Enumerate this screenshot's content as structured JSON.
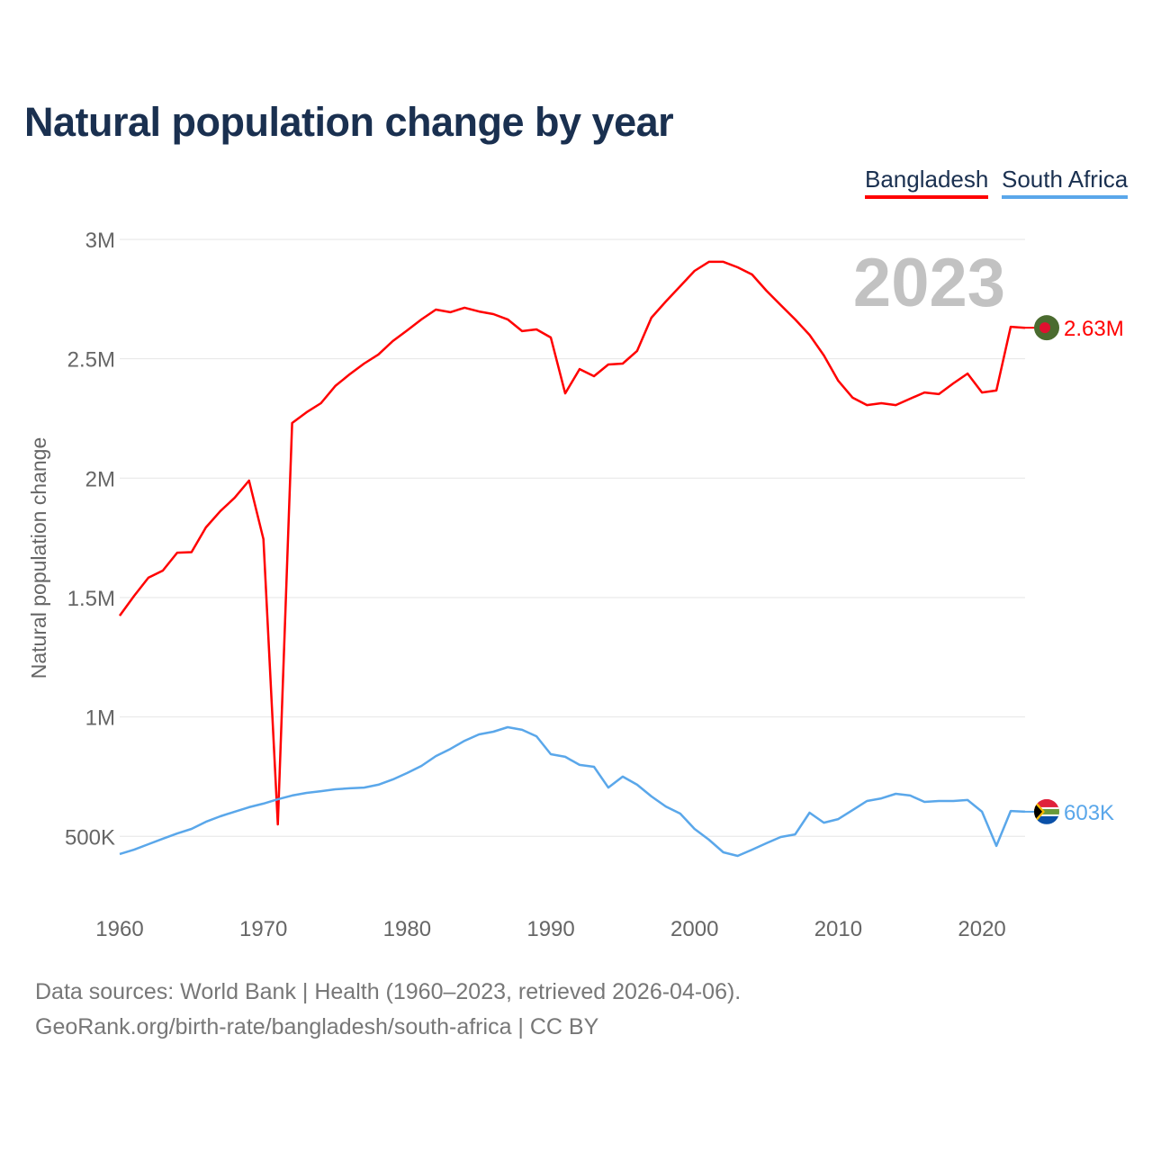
{
  "title": "Natural population change by year",
  "footer": {
    "line1": "Data sources: World Bank | Health (1960–2023, retrieved 2026-04-06).",
    "line2": "GeoRank.org/birth-rate/bangladesh/south-africa | CC BY"
  },
  "chart_data": {
    "type": "line",
    "title": "Natural population change by year",
    "xlabel": "",
    "ylabel": "Natural population change",
    "year_label": "2023",
    "xlim": [
      1960,
      2023
    ],
    "ylim": [
      300000,
      3000000
    ],
    "grid": true,
    "legend_position": "top-right",
    "x_ticks": [
      1960,
      1970,
      1980,
      1990,
      2000,
      2010,
      2020
    ],
    "y_ticks": [
      {
        "value": 500000,
        "label": "500K"
      },
      {
        "value": 1000000,
        "label": "1M"
      },
      {
        "value": 1500000,
        "label": "1.5M"
      },
      {
        "value": 2000000,
        "label": "2M"
      },
      {
        "value": 2500000,
        "label": "2.5M"
      },
      {
        "value": 3000000,
        "label": "3M"
      }
    ],
    "x": [
      1960,
      1961,
      1962,
      1963,
      1964,
      1965,
      1966,
      1967,
      1968,
      1969,
      1970,
      1971,
      1972,
      1973,
      1974,
      1975,
      1976,
      1977,
      1978,
      1979,
      1980,
      1981,
      1982,
      1983,
      1984,
      1985,
      1986,
      1987,
      1988,
      1989,
      1990,
      1991,
      1992,
      1993,
      1994,
      1995,
      1996,
      1997,
      1998,
      1999,
      2000,
      2001,
      2002,
      2003,
      2004,
      2005,
      2006,
      2007,
      2008,
      2009,
      2010,
      2011,
      2012,
      2013,
      2014,
      2015,
      2016,
      2017,
      2018,
      2019,
      2020,
      2021,
      2022,
      2023
    ],
    "series": [
      {
        "name": "Bangladesh",
        "color": "#ff0000",
        "end_label": "2.63M",
        "flag": "bangladesh-flag",
        "values": [
          1424000,
          1507000,
          1583000,
          1613000,
          1688000,
          1690000,
          1794000,
          1862000,
          1918000,
          1990000,
          1745000,
          550000,
          2231000,
          2276000,
          2314000,
          2386000,
          2435000,
          2480000,
          2518000,
          2574000,
          2619000,
          2665000,
          2706000,
          2695000,
          2714000,
          2698000,
          2687000,
          2665000,
          2616000,
          2623000,
          2589000,
          2355000,
          2457000,
          2427000,
          2476000,
          2480000,
          2533000,
          2672000,
          2740000,
          2804000,
          2868000,
          2906000,
          2906000,
          2883000,
          2853000,
          2785000,
          2725000,
          2665000,
          2600000,
          2514000,
          2408000,
          2337000,
          2306000,
          2314000,
          2306000,
          2333000,
          2359000,
          2352000,
          2397000,
          2438000,
          2359000,
          2367000,
          2634000,
          2630000
        ]
      },
      {
        "name": "South Africa",
        "color": "#5aa7ea",
        "end_label": "603K",
        "flag": "south-africa-flag",
        "values": [
          426000,
          444000,
          467000,
          490000,
          512000,
          531000,
          561000,
          584000,
          603000,
          622000,
          637000,
          655000,
          671000,
          682000,
          689000,
          697000,
          701000,
          704000,
          716000,
          738000,
          765000,
          795000,
          836000,
          866000,
          900000,
          927000,
          938000,
          957000,
          946000,
          919000,
          844000,
          833000,
          799000,
          791000,
          704000,
          750000,
          716000,
          667000,
          625000,
          595000,
          531000,
          486000,
          433000,
          418000,
          444000,
          471000,
          497000,
          508000,
          599000,
          557000,
          572000,
          610000,
          648000,
          659000,
          678000,
          671000,
          644000,
          648000,
          648000,
          652000,
          603000,
          460000,
          606000,
          603000
        ]
      }
    ]
  }
}
